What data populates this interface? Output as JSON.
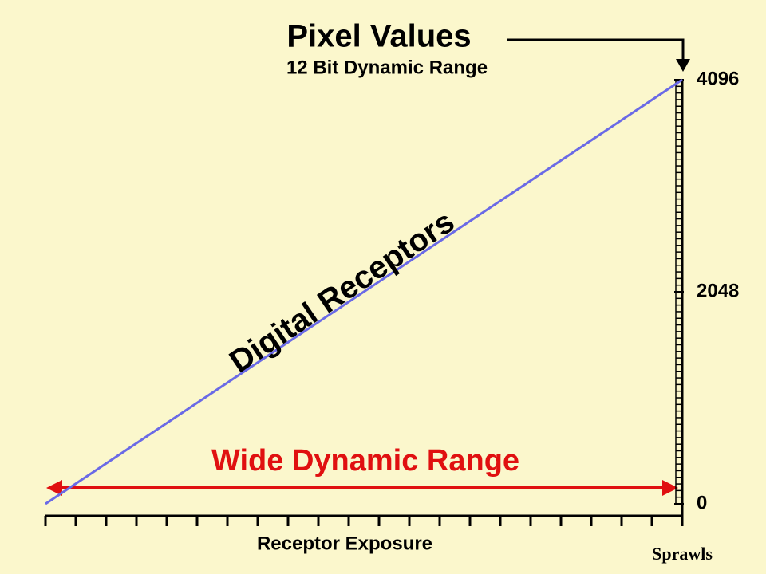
{
  "chart_data": {
    "type": "line",
    "title": "Pixel Values",
    "subtitle": "12 Bit Dynamic Range",
    "x_label": "Receptor Exposure",
    "annotations": [
      "Digital Receptors",
      "Wide Dynamic Range"
    ],
    "credit": "Sprawls",
    "x": [
      0,
      100
    ],
    "xlim": [
      0,
      100
    ],
    "series": [
      {
        "color": "#6a6ae6",
        "values": [
          0,
          4096
        ]
      }
    ],
    "ylim": [
      0,
      4096
    ],
    "yticks": [
      0,
      2048,
      4096
    ]
  }
}
